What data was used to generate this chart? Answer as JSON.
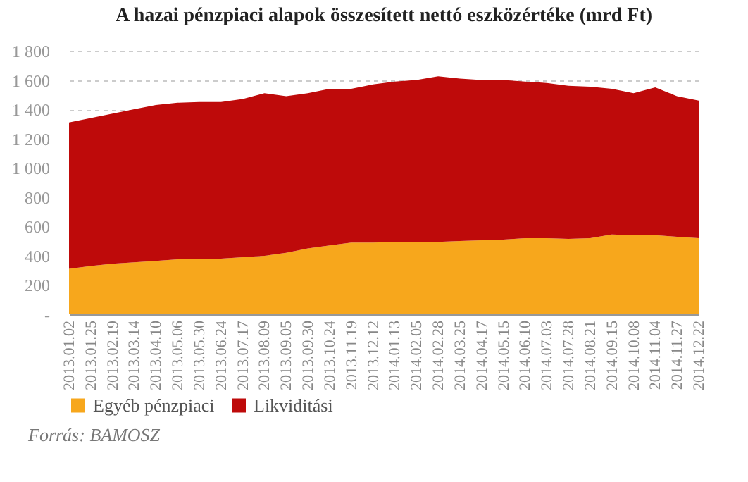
{
  "chart_data": {
    "type": "area",
    "stacked": true,
    "title": "A hazai pénzpiaci alapok összesített nettó eszközértéke  (mrd Ft)",
    "categories": [
      "2013.01.02",
      "2013.01.25",
      "2013.02.19",
      "2013.03.14",
      "2013.04.10",
      "2013.05.06",
      "2013.05.30",
      "2013.06.24",
      "2013.07.17",
      "2013.08.09",
      "2013.09.05",
      "2013.09.30",
      "2013.10.24",
      "2013.11.19",
      "2013.12.12",
      "2014.01.13",
      "2014.02.05",
      "2014.02.28",
      "2014.03.25",
      "2014.04.17",
      "2014.05.15",
      "2014.06.10",
      "2014.07.03",
      "2014.07.28",
      "2014.08.21",
      "2014.09.15",
      "2014.10.08",
      "2014.11.04",
      "2014.11.27",
      "2014.12.22"
    ],
    "series": [
      {
        "name": "Egyéb pénzpiaci",
        "color": "#f7a71c",
        "values": [
          310,
          330,
          345,
          355,
          365,
          375,
          380,
          380,
          390,
          400,
          420,
          450,
          470,
          490,
          490,
          495,
          495,
          495,
          500,
          505,
          510,
          520,
          520,
          515,
          520,
          545,
          540,
          540,
          530,
          520
        ]
      },
      {
        "name": "Likviditási",
        "color": "#be0a0a",
        "values": [
          1000,
          1010,
          1025,
          1045,
          1065,
          1070,
          1070,
          1070,
          1080,
          1110,
          1070,
          1060,
          1070,
          1050,
          1080,
          1095,
          1105,
          1130,
          1110,
          1095,
          1090,
          1070,
          1060,
          1045,
          1035,
          995,
          970,
          1010,
          960,
          940
        ]
      }
    ],
    "ylim": [
      0,
      1800
    ],
    "yticks": [
      {
        "value": 0,
        "label": "-"
      },
      {
        "value": 200,
        "label": "200"
      },
      {
        "value": 400,
        "label": "400"
      },
      {
        "value": 600,
        "label": "600"
      },
      {
        "value": 800,
        "label": "800"
      },
      {
        "value": 1000,
        "label": "1 000"
      },
      {
        "value": 1200,
        "label": "1 200"
      },
      {
        "value": 1400,
        "label": "1 400"
      },
      {
        "value": 1600,
        "label": "1 600"
      },
      {
        "value": 1800,
        "label": "1 800"
      }
    ],
    "grid": "y",
    "legend": "bottom",
    "annotations": [
      "Forrás: BAMOSZ"
    ]
  }
}
